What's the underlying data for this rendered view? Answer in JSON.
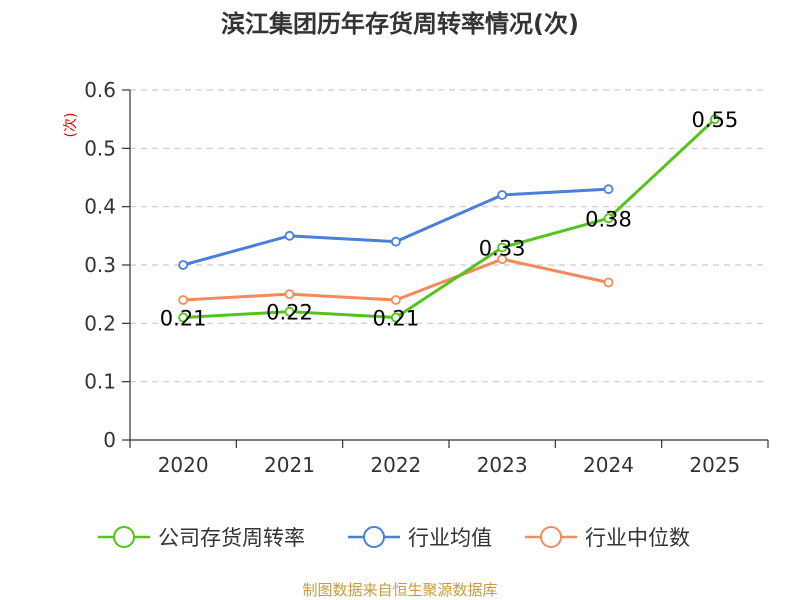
{
  "chart_data": {
    "type": "line",
    "title": "滨江集团历年存货周转率情况(次)",
    "ylabel": "(次)",
    "xlabel": "",
    "categories": [
      "2020",
      "2021",
      "2022",
      "2023",
      "2024",
      "2025"
    ],
    "ylim": [
      0,
      0.6
    ],
    "yticks": [
      "0",
      "0.1",
      "0.2",
      "0.3",
      "0.4",
      "0.5",
      "0.6"
    ],
    "grid": true,
    "legend_position": "bottom",
    "series": [
      {
        "name": "公司存货周转率",
        "color": "#52c41a",
        "values": [
          0.21,
          0.22,
          0.21,
          0.33,
          0.38,
          0.55
        ],
        "labels": [
          "0.21",
          "0.22",
          "0.21",
          "0.33",
          "0.38",
          "0.55"
        ]
      },
      {
        "name": "行业均值",
        "color": "#4a7fdb",
        "values": [
          0.3,
          0.35,
          0.34,
          0.42,
          0.43,
          null
        ],
        "labels": []
      },
      {
        "name": "行业中位数",
        "color": "#f5895a",
        "values": [
          0.24,
          0.25,
          0.24,
          0.31,
          0.27,
          null
        ],
        "labels": []
      }
    ],
    "source": "制图数据来自恒生聚源数据库"
  }
}
